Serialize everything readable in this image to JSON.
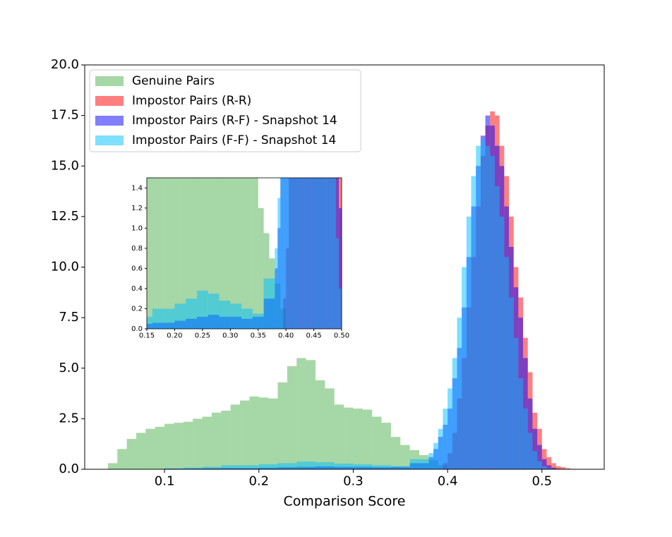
{
  "chart_data": {
    "type": "histogram",
    "xlabel": "Comparison Score",
    "xlim": [
      0.0154,
      0.566
    ],
    "ylim": [
      0,
      20
    ],
    "xticks": [
      0.1,
      0.2,
      0.3,
      0.4,
      0.5
    ],
    "yticks": [
      {
        "value": 0,
        "label": "0.0"
      },
      2.5,
      {
        "value": 5,
        "label": "5.0"
      },
      7.5,
      {
        "value": 10,
        "label": "10.0"
      },
      12.5,
      {
        "value": 15,
        "label": "15.0"
      },
      17.5,
      {
        "value": 20,
        "label": "20.0"
      }
    ],
    "legend": "upper left",
    "series": [
      {
        "name": "Genuine Pairs",
        "color": "#2ca02c",
        "opacity": 0.42,
        "bins": [
          0.04,
          0.05,
          0.06,
          0.07,
          0.08,
          0.09,
          0.1,
          0.11,
          0.12,
          0.13,
          0.14,
          0.15,
          0.16,
          0.17,
          0.18,
          0.19,
          0.2,
          0.21,
          0.22,
          0.23,
          0.24,
          0.25,
          0.26,
          0.27,
          0.28,
          0.29,
          0.3,
          0.31,
          0.32,
          0.33,
          0.34,
          0.35,
          0.36,
          0.37,
          0.38,
          0.39,
          0.4
        ],
        "values": [
          0.3,
          1.0,
          1.5,
          1.8,
          2.0,
          2.1,
          2.25,
          2.3,
          2.35,
          2.5,
          2.6,
          2.8,
          2.9,
          3.2,
          3.4,
          3.6,
          3.55,
          3.5,
          4.3,
          5.1,
          5.5,
          5.4,
          4.4,
          4.0,
          3.2,
          3.05,
          3.0,
          2.95,
          2.6,
          2.3,
          1.6,
          1.2,
          0.95,
          0.7,
          0.45,
          0.2
        ]
      },
      {
        "name": "Impostor Pairs (R-R)",
        "color": "#ff0000",
        "opacity": 0.5,
        "bins": [
          0.395,
          0.4,
          0.405,
          0.41,
          0.415,
          0.42,
          0.425,
          0.43,
          0.435,
          0.44,
          0.445,
          0.45,
          0.455,
          0.46,
          0.465,
          0.47,
          0.475,
          0.48,
          0.485,
          0.49,
          0.495,
          0.5,
          0.505,
          0.51,
          0.515,
          0.52,
          0.525,
          0.53,
          0.535
        ],
        "values": [
          0.3,
          0.8,
          1.8,
          3.5,
          5.5,
          8,
          10.5,
          13,
          15.5,
          17,
          17.7,
          17.5,
          16,
          14.5,
          12.5,
          10,
          8.5,
          6.5,
          4.8,
          2.8,
          2.0,
          1.0,
          0.6,
          0.3,
          0.15,
          0.1,
          0.05,
          0.02
        ]
      },
      {
        "name": "Impostor Pairs (R-F) - Snapshot 14",
        "color": "#0000ff",
        "opacity": 0.5,
        "bins": [
          0.1,
          0.12,
          0.14,
          0.16,
          0.18,
          0.2,
          0.22,
          0.24,
          0.26,
          0.28,
          0.3,
          0.32,
          0.34,
          0.36,
          0.38,
          0.385,
          0.39,
          0.395,
          0.4,
          0.405,
          0.41,
          0.415,
          0.42,
          0.425,
          0.43,
          0.435,
          0.44,
          0.445,
          0.45,
          0.455,
          0.46,
          0.465,
          0.47,
          0.475,
          0.48,
          0.485,
          0.49,
          0.495,
          0.5,
          0.505,
          0.51,
          0.515,
          0.52
        ],
        "values": [
          0.03,
          0.04,
          0.05,
          0.06,
          0.06,
          0.08,
          0.1,
          0.12,
          0.14,
          0.12,
          0.12,
          0.1,
          0.12,
          0.3,
          0.6,
          1.0,
          1.6,
          2.2,
          3,
          4.5,
          6,
          8,
          10.5,
          13,
          15,
          16.5,
          17.5,
          17,
          16,
          15,
          13,
          11,
          9,
          7.5,
          5.5,
          3.5,
          2,
          1.2,
          0.5,
          0.2,
          0.08,
          0.03
        ]
      },
      {
        "name": "Impostor Pairs (F-F) - Snapshot 14",
        "color": "#00bfff",
        "opacity": 0.5,
        "bins": [
          0.1,
          0.12,
          0.14,
          0.16,
          0.18,
          0.2,
          0.22,
          0.24,
          0.26,
          0.28,
          0.3,
          0.32,
          0.34,
          0.36,
          0.38,
          0.385,
          0.39,
          0.395,
          0.4,
          0.405,
          0.41,
          0.415,
          0.42,
          0.425,
          0.43,
          0.435,
          0.44,
          0.445,
          0.45,
          0.455,
          0.46,
          0.465,
          0.47,
          0.475,
          0.48,
          0.485,
          0.49,
          0.495,
          0.5,
          0.505,
          0.51,
          0.515,
          0.52
        ],
        "values": [
          0.05,
          0.08,
          0.12,
          0.2,
          0.2,
          0.25,
          0.3,
          0.38,
          0.35,
          0.28,
          0.25,
          0.2,
          0.15,
          0.5,
          0.8,
          1.3,
          2,
          3,
          4,
          5.5,
          7.5,
          10,
          12.5,
          14.5,
          16,
          16.3,
          16,
          15.5,
          14,
          12.5,
          10.5,
          8.5,
          6.5,
          4.5,
          3,
          1.8,
          0.9,
          0.4,
          0.15,
          0.05,
          0.02,
          0.01
        ]
      }
    ],
    "inset": {
      "xlim": [
        0.15,
        0.5
      ],
      "ylim": [
        0,
        1.5
      ],
      "xticks": [
        0.15,
        {
          "value": 0.2,
          "label": "0.20"
        },
        0.25,
        {
          "value": 0.3,
          "label": "0.30"
        },
        0.35,
        {
          "value": 0.4,
          "label": "0.40"
        },
        0.45,
        {
          "value": 0.5,
          "label": "0.50"
        }
      ],
      "yticks": [
        {
          "value": 0,
          "label": "0.0"
        },
        0.2,
        0.4,
        0.6,
        0.8,
        {
          "value": 1,
          "label": "1.0"
        },
        1.2,
        1.4
      ]
    }
  }
}
